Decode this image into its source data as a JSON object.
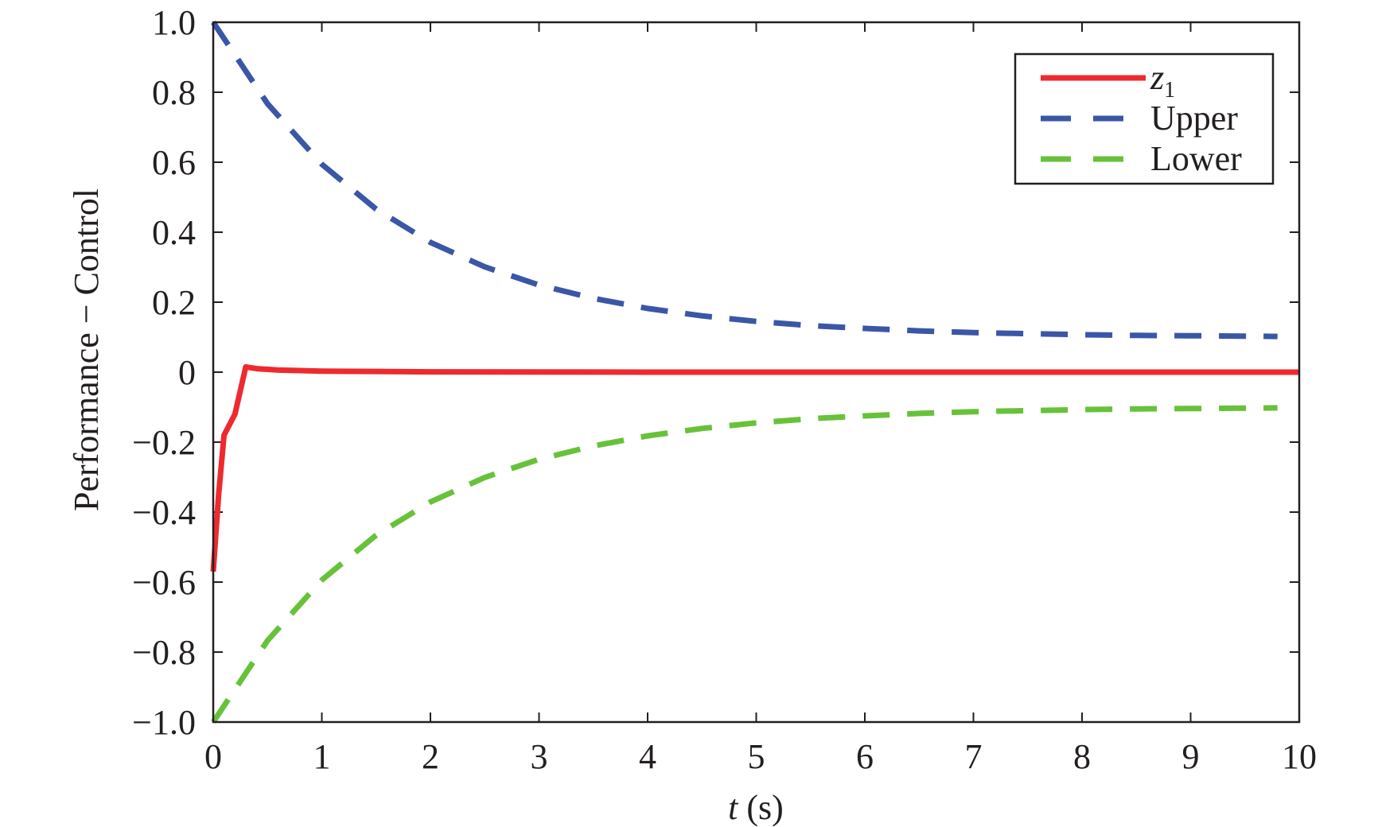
{
  "chart_data": {
    "type": "line",
    "title": "",
    "xlabel_var": "t",
    "xlabel_unit": " (s)",
    "ylabel": "Performance − Control",
    "xlim": [
      0,
      10
    ],
    "ylim": [
      -1.0,
      1.0
    ],
    "xticks": [
      "0",
      "1",
      "2",
      "3",
      "4",
      "5",
      "6",
      "7",
      "8",
      "9",
      "10"
    ],
    "yticks": [
      "1.0",
      "0.8",
      "0.6",
      "0.4",
      "0.2",
      "0",
      "−0.2",
      "−0.4",
      "−0.6",
      "−0.8",
      "−1.0"
    ],
    "grid": false,
    "legend_position": "top-right",
    "series": [
      {
        "name": "z",
        "name_sub": "1",
        "color": "#ee2a2f",
        "style": "solid",
        "x": [
          0,
          0.05,
          0.1,
          0.2,
          0.3,
          0.4,
          0.6,
          1,
          2,
          4,
          6,
          8,
          10
        ],
        "y": [
          -0.57,
          -0.35,
          -0.18,
          -0.12,
          0.015,
          0.01,
          0.006,
          0.003,
          0.001,
          0,
          0,
          0,
          0
        ]
      },
      {
        "name": "Upper",
        "color": "#3a56a7",
        "style": "dashed",
        "x": [
          0,
          0.5,
          1,
          1.5,
          2,
          2.5,
          3,
          3.5,
          4,
          4.5,
          5,
          5.5,
          6,
          6.5,
          7,
          7.5,
          8,
          8.5,
          9,
          9.5,
          9.8
        ],
        "y": [
          1.0,
          0.767,
          0.594,
          0.466,
          0.371,
          0.301,
          0.249,
          0.211,
          0.182,
          0.161,
          0.145,
          0.133,
          0.125,
          0.118,
          0.113,
          0.11,
          0.107,
          0.105,
          0.104,
          0.103,
          0.102
        ]
      },
      {
        "name": "Lower",
        "color": "#67c23a",
        "style": "dashed",
        "x": [
          0,
          0.5,
          1,
          1.5,
          2,
          2.5,
          3,
          3.5,
          4,
          4.5,
          5,
          5.5,
          6,
          6.5,
          7,
          7.5,
          8,
          8.5,
          9,
          9.5,
          9.8
        ],
        "y": [
          -1.0,
          -0.767,
          -0.594,
          -0.466,
          -0.371,
          -0.301,
          -0.249,
          -0.211,
          -0.182,
          -0.161,
          -0.145,
          -0.133,
          -0.125,
          -0.118,
          -0.113,
          -0.11,
          -0.107,
          -0.105,
          -0.104,
          -0.103,
          -0.102
        ]
      }
    ]
  }
}
